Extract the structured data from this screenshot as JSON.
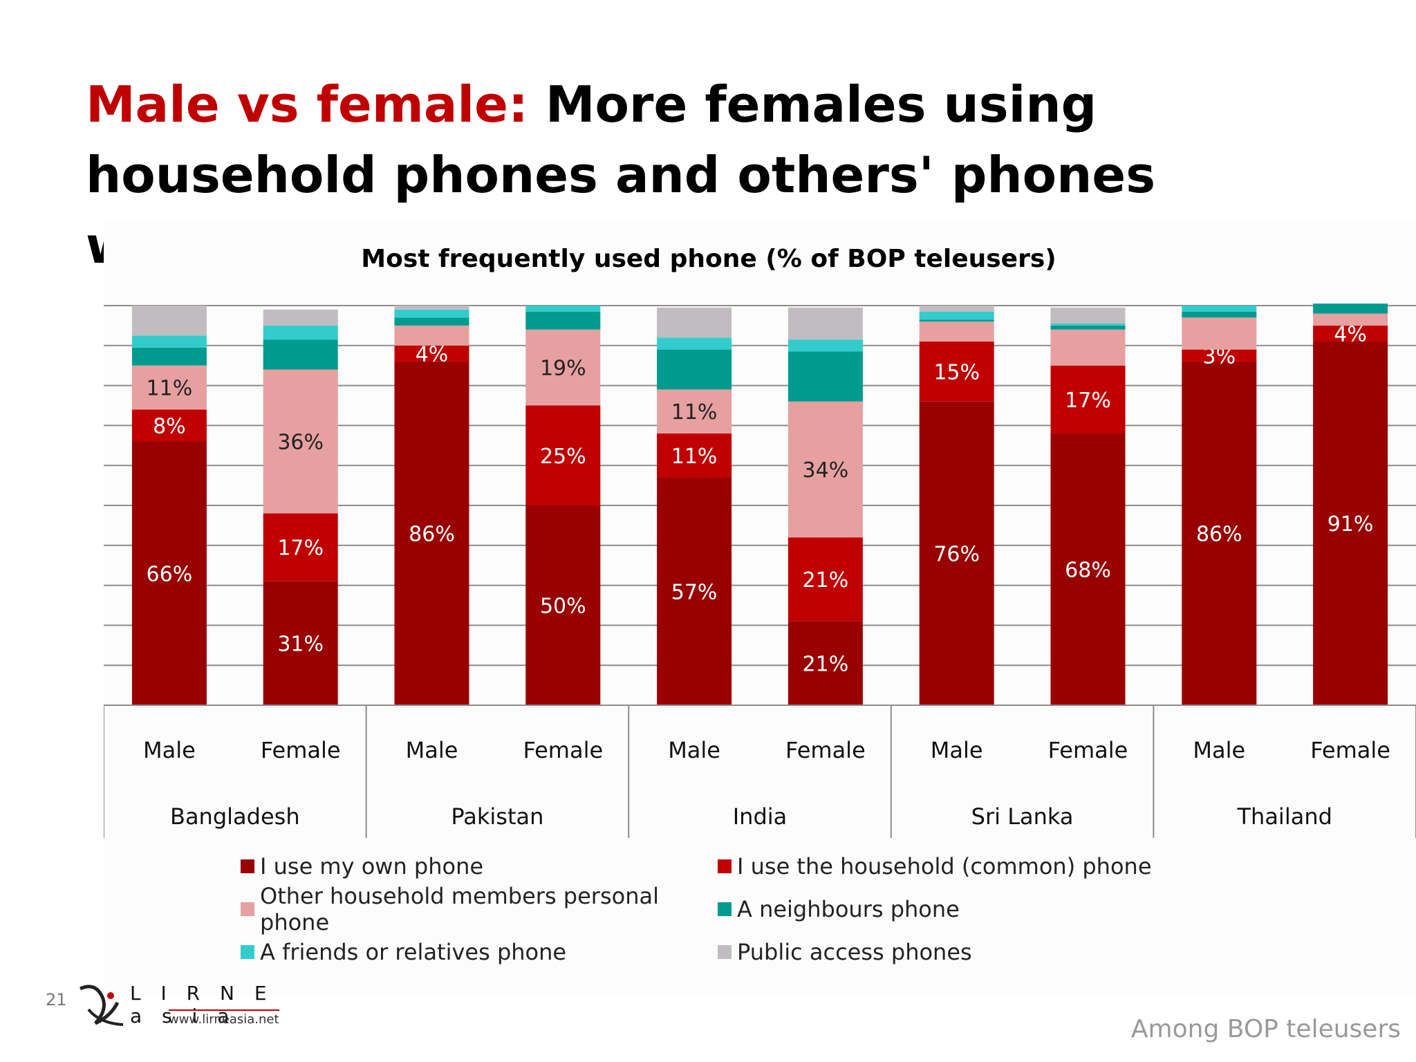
{
  "slide": {
    "title_accent": "Male vs female:",
    "title_rest": " More females using household phones and others' phones within household",
    "page_number": "21",
    "logo_text": "L I R N E a s i a",
    "logo_url": "www.lirneasia.net",
    "footnote": "Among BOP teleusers"
  },
  "chart_data": {
    "type": "bar",
    "stacked": true,
    "title": "Most frequently used phone (% of BOP teleusers)",
    "ylim": [
      0,
      100
    ],
    "y_ticks": [
      "0%",
      "10%",
      "20%",
      "30%",
      "40%",
      "50%",
      "60%",
      "70%",
      "80%",
      "90%",
      "100%"
    ],
    "grid": true,
    "legend_position": "bottom",
    "groups": [
      "Bangladesh",
      "Pakistan",
      "India",
      "Sri Lanka",
      "Thailand"
    ],
    "categories": [
      "Male",
      "Female",
      "Male",
      "Female",
      "Male",
      "Female",
      "Male",
      "Female",
      "Male",
      "Female"
    ],
    "series": [
      {
        "name": "I use my own phone",
        "color": "#990000",
        "values": [
          66,
          31,
          86,
          50,
          57,
          21,
          76,
          68,
          86,
          91
        ],
        "labels": [
          "66%",
          "31%",
          "86%",
          "50%",
          "57%",
          "21%",
          "76%",
          "68%",
          "86%",
          "91%"
        ]
      },
      {
        "name": "I use the household (common) phone",
        "color": "#c00000",
        "values": [
          8,
          17,
          4,
          25,
          11,
          21,
          15,
          17,
          3,
          4
        ],
        "labels": [
          "8%",
          "17%",
          "4%",
          "25%",
          "11%",
          "21%",
          "15%",
          "17%",
          "3%",
          "4%"
        ]
      },
      {
        "name": "Other household members personal phone",
        "color": "#e6a0a0",
        "values": [
          11,
          36,
          5,
          19,
          11,
          34,
          5,
          9,
          8,
          3
        ],
        "labels": [
          "11%",
          "36%",
          "",
          "19%",
          "11%",
          "34%",
          "",
          "",
          "",
          ""
        ]
      },
      {
        "name": "A neighbours phone",
        "color": "#009a8e",
        "values": [
          4.5,
          7.5,
          2,
          4.5,
          10,
          12.5,
          0.5,
          1,
          1.5,
          2.5
        ],
        "labels": [
          "",
          "",
          "",
          "",
          "",
          "",
          "",
          "",
          "",
          ""
        ]
      },
      {
        "name": "A friends or relatives phone",
        "color": "#33cccc",
        "values": [
          3,
          3.5,
          2,
          1.5,
          3,
          3,
          2,
          0.5,
          1.5,
          0
        ],
        "labels": [
          "",
          "",
          "",
          "",
          "",
          "",
          "",
          "",
          "",
          ""
        ]
      },
      {
        "name": "Public access phones",
        "color": "#c0bcc0",
        "values": [
          7.5,
          4,
          1,
          0,
          7.5,
          8,
          1.5,
          4,
          0,
          0
        ],
        "labels": [
          "",
          "",
          "",
          "",
          "",
          "",
          "",
          "",
          "",
          ""
        ]
      }
    ]
  }
}
